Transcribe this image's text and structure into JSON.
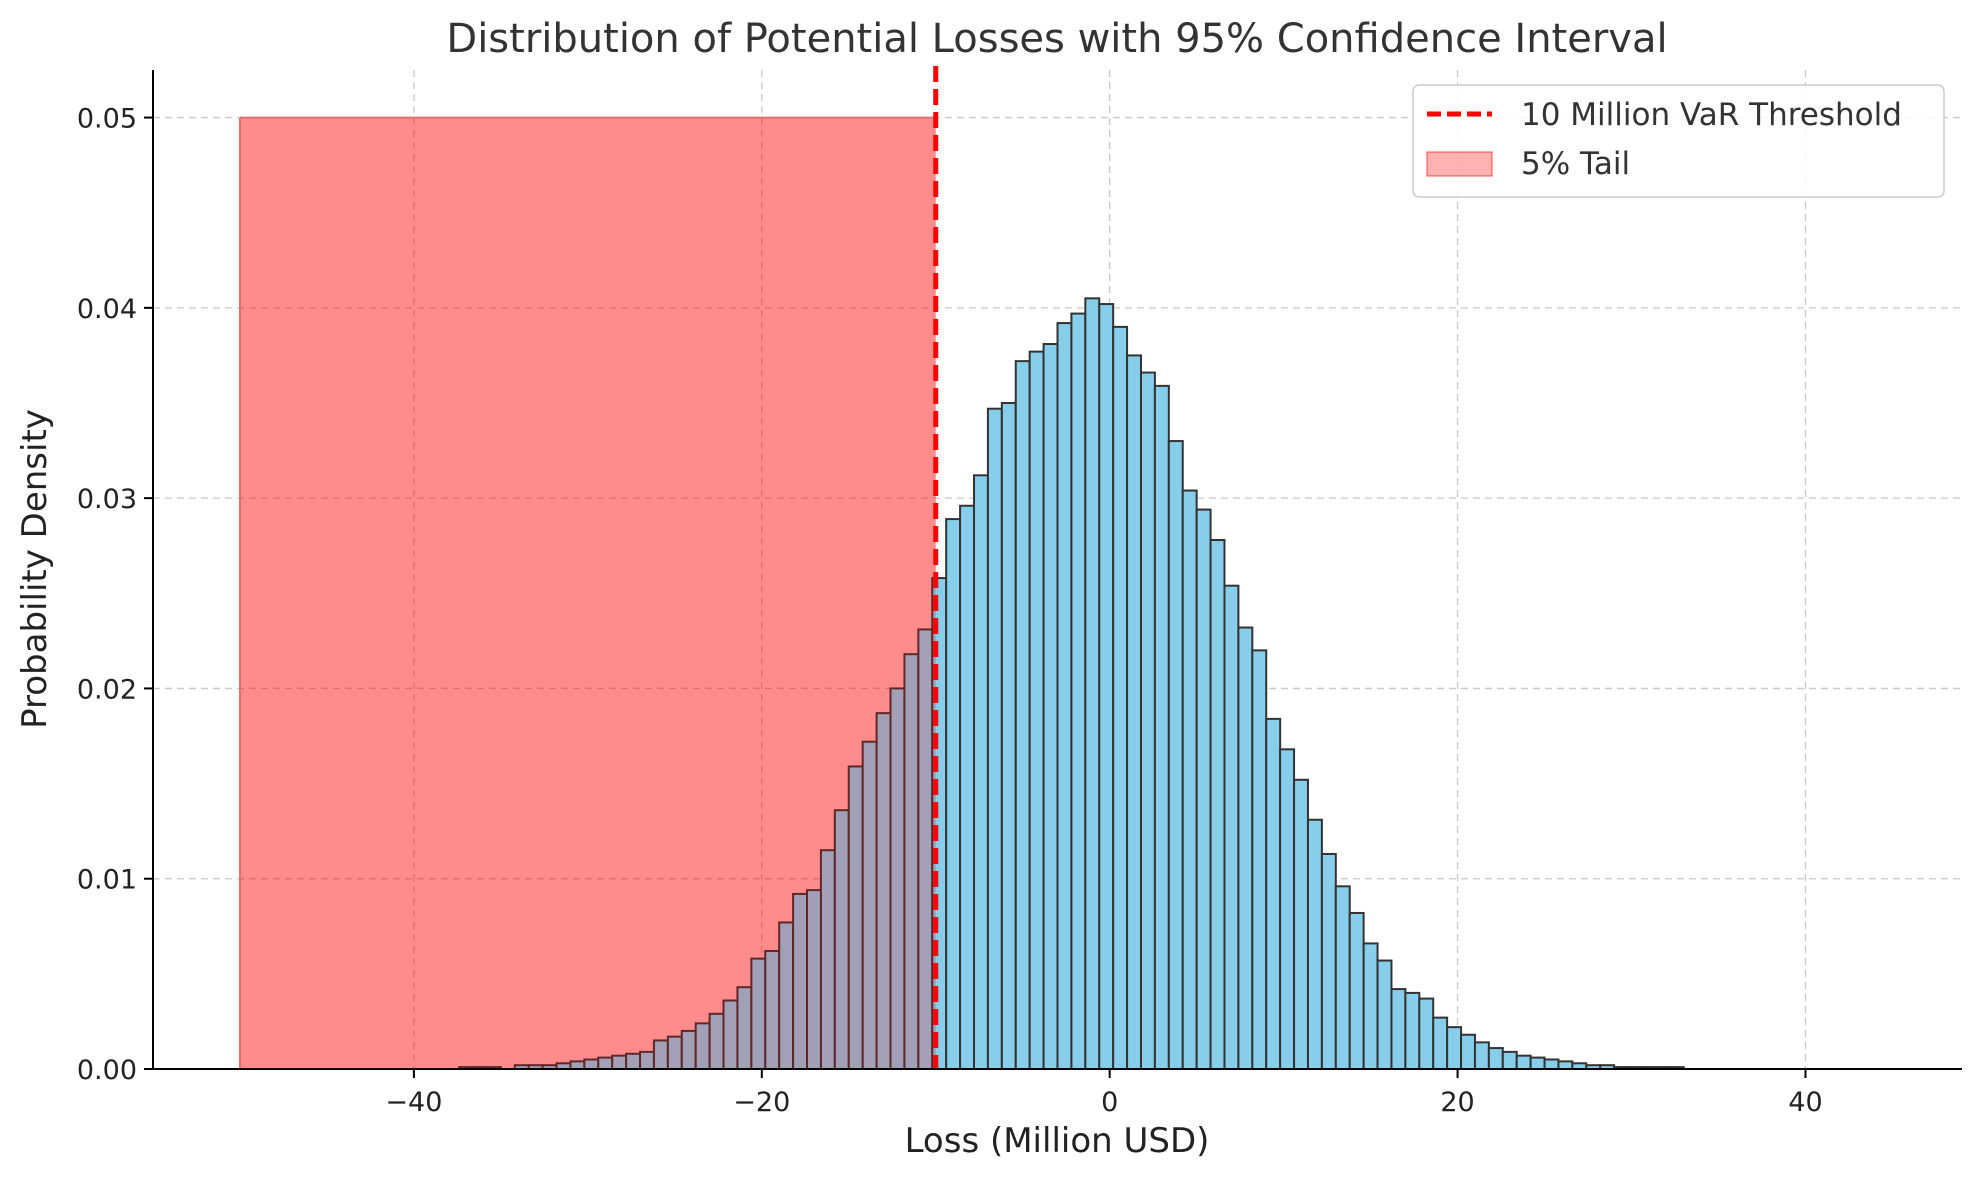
{
  "chart_data": {
    "type": "bar",
    "title": "Distribution of Potential Losses with 95% Confidence Interval",
    "xlabel": "Loss (Million USD)",
    "ylabel": "Probability Density",
    "xlim": [
      -55,
      49
    ],
    "ylim": [
      0,
      0.0525
    ],
    "xticks": [
      -40,
      -20,
      0,
      20,
      40
    ],
    "xtick_labels": [
      "−40",
      "−20",
      "0",
      "20",
      "40"
    ],
    "yticks": [
      0.0,
      0.01,
      0.02,
      0.03,
      0.04,
      0.05
    ],
    "ytick_labels": [
      "0.00",
      "0.01",
      "0.02",
      "0.03",
      "0.04",
      "0.05"
    ],
    "grid": true,
    "legend_position": "top-right",
    "bar_color": "#87ceeb",
    "bar_edge_color": "#333333",
    "bins": {
      "start": -37.4,
      "width": 0.8,
      "values": [
        0.0001,
        0.0001,
        0.0001,
        0.0,
        0.0002,
        0.0002,
        0.0002,
        0.0003,
        0.0004,
        0.0005,
        0.0006,
        0.0007,
        0.0008,
        0.0009,
        0.0015,
        0.0017,
        0.002,
        0.0024,
        0.0029,
        0.0036,
        0.0043,
        0.0058,
        0.0062,
        0.0077,
        0.0092,
        0.0094,
        0.0115,
        0.0136,
        0.0159,
        0.0172,
        0.0187,
        0.02,
        0.0218,
        0.0231,
        0.0258,
        0.0289,
        0.0296,
        0.0312,
        0.0347,
        0.035,
        0.0372,
        0.0377,
        0.0381,
        0.0392,
        0.0397,
        0.0405,
        0.0402,
        0.039,
        0.0375,
        0.0366,
        0.0359,
        0.033,
        0.0304,
        0.0294,
        0.0278,
        0.0254,
        0.0232,
        0.022,
        0.0184,
        0.0168,
        0.0152,
        0.0131,
        0.0113,
        0.0096,
        0.0082,
        0.0066,
        0.0057,
        0.0042,
        0.004,
        0.0037,
        0.0027,
        0.0022,
        0.0018,
        0.0014,
        0.0011,
        0.0009,
        0.0007,
        0.0006,
        0.0005,
        0.0004,
        0.0003,
        0.0002,
        0.0002,
        0.0001,
        0.0001,
        0.0001,
        0.0001,
        0.0001
      ]
    },
    "var_threshold": {
      "x": -10,
      "label": "10 Million VaR Threshold",
      "color": "#ff0000"
    },
    "tail_region": {
      "x_start": -50,
      "x_end": -10,
      "y_top": 0.05,
      "label": "5% Tail",
      "color": "#ff0000",
      "alpha": 0.3
    }
  }
}
